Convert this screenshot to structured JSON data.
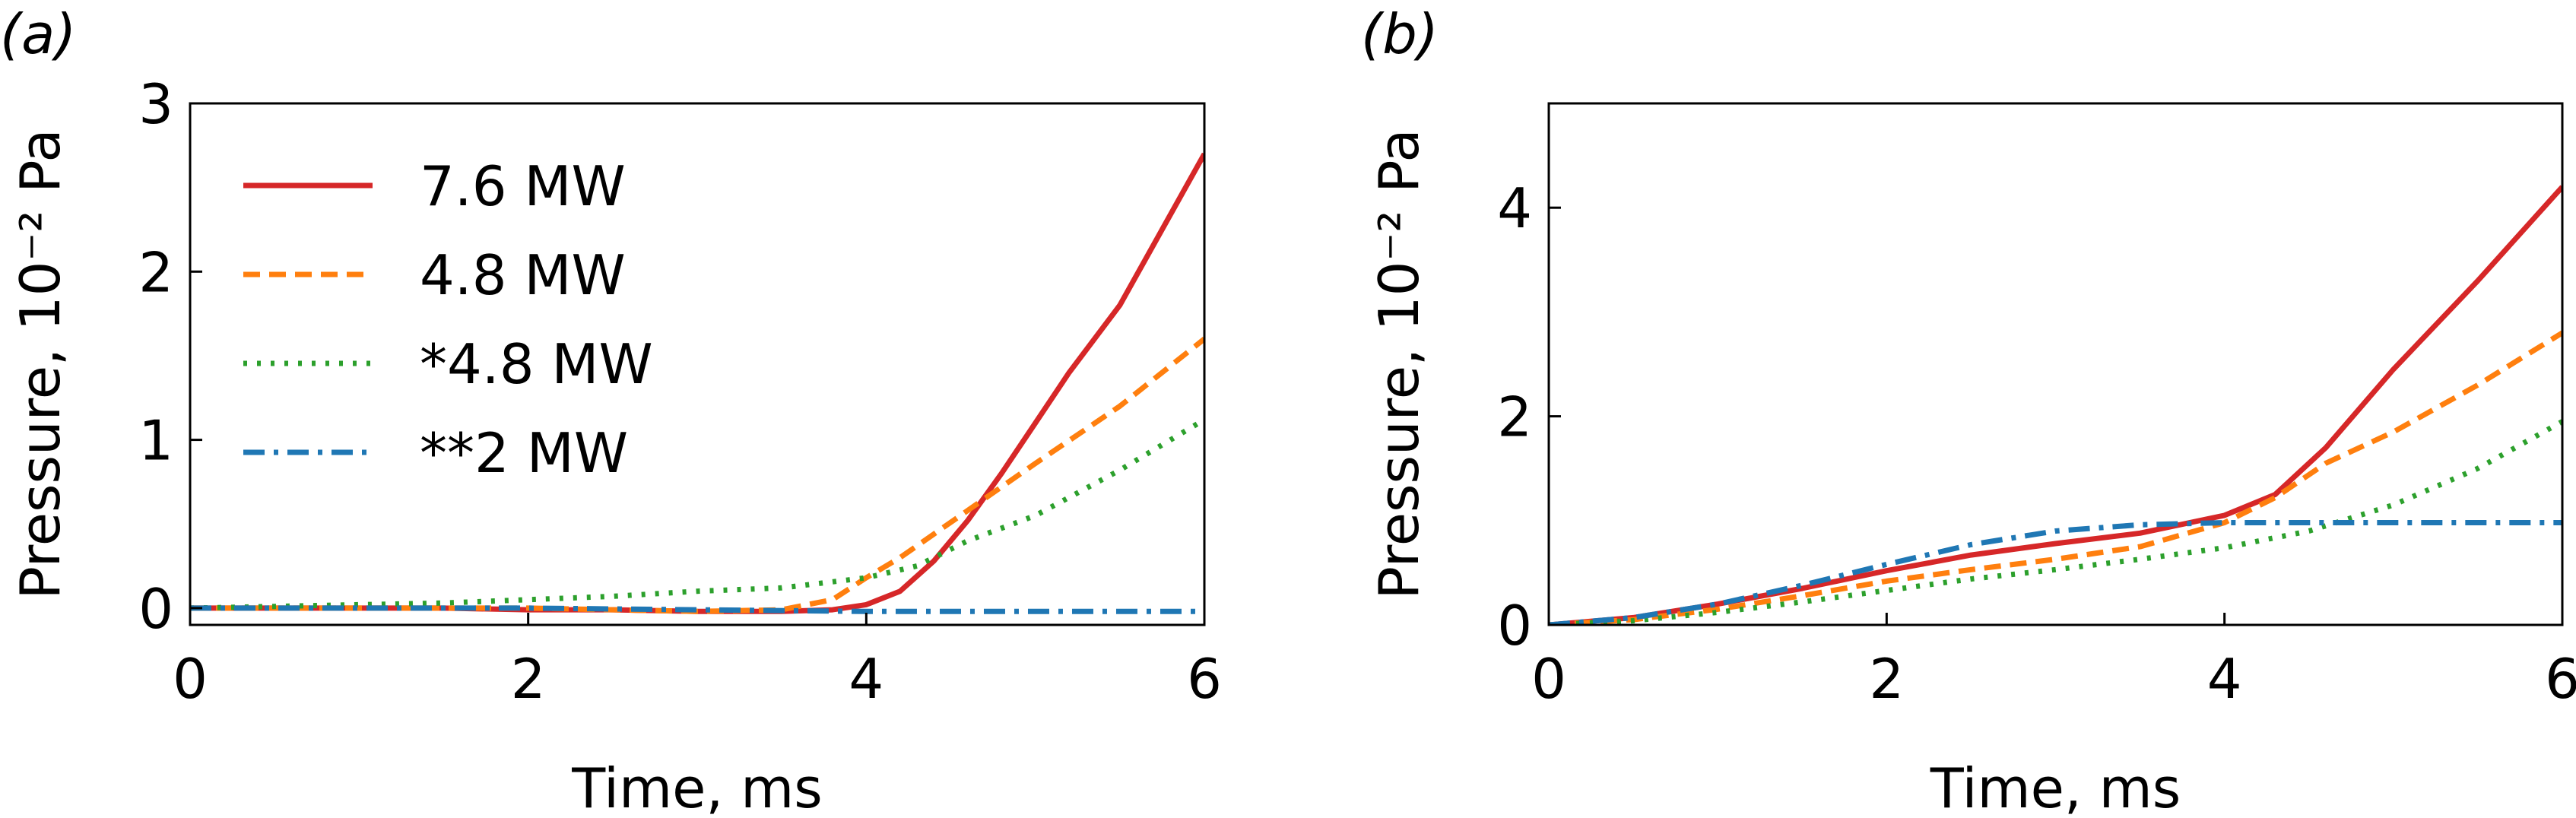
{
  "figure": {
    "panel_labels": [
      "(a)",
      "(b)"
    ]
  },
  "chart_data": [
    {
      "panel": "(a)",
      "type": "line",
      "xlabel": "Time, ms",
      "ylabel": "Pressure, 10⁻² Pa",
      "xlim": [
        0,
        6
      ],
      "ylim": [
        -0.1,
        3
      ],
      "xticks": [
        0,
        2,
        4,
        6
      ],
      "yticks": [
        0,
        1,
        2,
        3
      ],
      "grid": false,
      "legend": "upper-left",
      "series": [
        {
          "name": "7.6 MW",
          "color": "#d62728",
          "style": "solid",
          "x": [
            0,
            0.5,
            1,
            1.5,
            2,
            2.5,
            3,
            3.5,
            3.8,
            4,
            4.2,
            4.4,
            4.6,
            4.8,
            5,
            5.2,
            5.5,
            6
          ],
          "y": [
            0.0,
            0.0,
            0.0,
            0.0,
            -0.01,
            -0.01,
            -0.02,
            -0.02,
            -0.01,
            0.02,
            0.1,
            0.28,
            0.52,
            0.8,
            1.1,
            1.4,
            1.8,
            2.7
          ]
        },
        {
          "name": "4.8 MW",
          "color": "#ff7f0e",
          "style": "dashed",
          "x": [
            0,
            0.5,
            1,
            1.5,
            2,
            2.5,
            3,
            3.5,
            3.8,
            4,
            4.2,
            4.4,
            4.6,
            4.8,
            5,
            5.5,
            6
          ],
          "y": [
            0.0,
            0.0,
            0.0,
            0.0,
            0.0,
            -0.01,
            -0.02,
            -0.01,
            0.05,
            0.18,
            0.3,
            0.44,
            0.58,
            0.72,
            0.86,
            1.2,
            1.6
          ]
        },
        {
          "name": "*4.8 MW",
          "color": "#2ca02c",
          "style": "dotted",
          "x": [
            0,
            0.5,
            1,
            1.5,
            2,
            2.5,
            3,
            3.5,
            4,
            4.3,
            4.6,
            5,
            5.5,
            6
          ],
          "y": [
            0.0,
            0.01,
            0.02,
            0.03,
            0.05,
            0.07,
            0.1,
            0.12,
            0.18,
            0.25,
            0.4,
            0.55,
            0.82,
            1.12
          ]
        },
        {
          "name": "**2 MW",
          "color": "#1f77b4",
          "style": "dashdot",
          "x": [
            0,
            1,
            2,
            3,
            4,
            5,
            6
          ],
          "y": [
            0.0,
            0.0,
            0.0,
            -0.01,
            -0.02,
            -0.02,
            -0.02
          ]
        }
      ]
    },
    {
      "panel": "(b)",
      "type": "line",
      "xlabel": "Time, ms",
      "ylabel": "Pressure, 10⁻² Pa",
      "xlim": [
        0,
        6
      ],
      "ylim": [
        0,
        5
      ],
      "xticks": [
        0,
        2,
        4,
        6
      ],
      "yticks": [
        0,
        2,
        4
      ],
      "grid": false,
      "series": [
        {
          "name": "7.6 MW",
          "color": "#d62728",
          "style": "solid",
          "x": [
            0,
            0.5,
            1,
            1.5,
            2,
            2.5,
            3,
            3.5,
            4,
            4.3,
            4.6,
            5,
            5.5,
            6
          ],
          "y": [
            0.0,
            0.07,
            0.2,
            0.35,
            0.52,
            0.67,
            0.78,
            0.88,
            1.05,
            1.25,
            1.7,
            2.45,
            3.3,
            4.2
          ]
        },
        {
          "name": "4.8 MW",
          "color": "#ff7f0e",
          "style": "dashed",
          "x": [
            0,
            0.5,
            1,
            1.5,
            2,
            2.5,
            3,
            3.5,
            4,
            4.3,
            4.6,
            5,
            5.5,
            6
          ],
          "y": [
            0.0,
            0.05,
            0.15,
            0.28,
            0.42,
            0.53,
            0.63,
            0.75,
            0.98,
            1.22,
            1.55,
            1.85,
            2.3,
            2.8
          ]
        },
        {
          "name": "*4.8 MW",
          "color": "#2ca02c",
          "style": "dotted",
          "x": [
            0,
            0.5,
            1,
            1.5,
            2,
            2.5,
            3,
            3.5,
            4,
            4.5,
            5,
            5.5,
            6
          ],
          "y": [
            0.0,
            0.04,
            0.12,
            0.22,
            0.33,
            0.44,
            0.53,
            0.63,
            0.74,
            0.9,
            1.15,
            1.5,
            1.95
          ]
        },
        {
          "name": "**2 MW",
          "color": "#1f77b4",
          "style": "dashdot",
          "x": [
            0,
            0.5,
            1,
            1.5,
            2,
            2.5,
            3,
            3.5,
            4,
            4.5,
            5,
            5.5,
            6
          ],
          "y": [
            0.0,
            0.07,
            0.2,
            0.38,
            0.58,
            0.77,
            0.9,
            0.96,
            0.98,
            0.98,
            0.98,
            0.98,
            0.98
          ]
        }
      ]
    }
  ]
}
